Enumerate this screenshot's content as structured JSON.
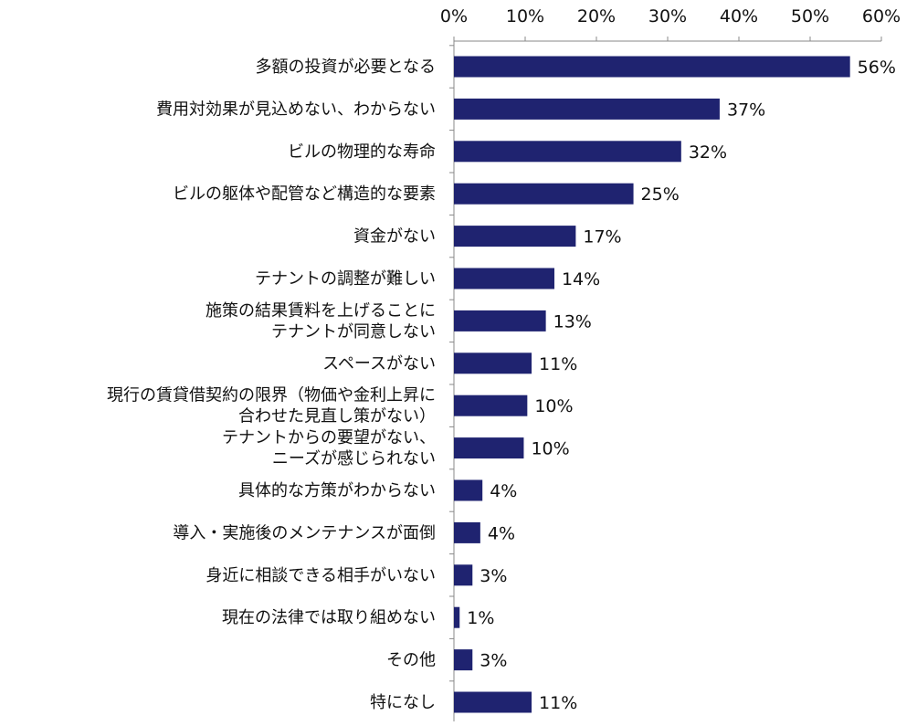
{
  "chart_data": {
    "type": "bar",
    "orientation": "horizontal",
    "title": "",
    "xlabel": "",
    "ylabel": "",
    "xlim": [
      0,
      60
    ],
    "x_ticks": [
      0,
      10,
      20,
      30,
      40,
      50,
      60
    ],
    "x_tick_labels": [
      "0%",
      "10%",
      "20%",
      "30%",
      "40%",
      "50%",
      "60%"
    ],
    "x_axis_position": "top",
    "grid": false,
    "legend": "none",
    "bar_color": "#1f2370",
    "categories": [
      [
        "多額の投資が必要となる"
      ],
      [
        "費用対効果が見込めない、わからない"
      ],
      [
        "ビルの物理的な寿命"
      ],
      [
        "ビルの躯体や配管など構造的な要素"
      ],
      [
        "資金がない"
      ],
      [
        "テナントの調整が難しい"
      ],
      [
        "施策の結果賃料を上げることに",
        "テナントが同意しない"
      ],
      [
        "スペースがない"
      ],
      [
        "現行の賃貸借契約の限界（物価や金利上昇に",
        "合わせた見直し策がない）"
      ],
      [
        "テナントからの要望がない、",
        "ニーズが感じられない"
      ],
      [
        "具体的な方策がわからない"
      ],
      [
        "導入・実施後のメンテナンスが面倒"
      ],
      [
        "身近に相談できる相手がいない"
      ],
      [
        "現在の法律では取り組めない"
      ],
      [
        "その他"
      ],
      [
        "特になし"
      ]
    ],
    "values": [
      55.6,
      37.3,
      31.9,
      25.2,
      17.1,
      14.1,
      12.9,
      10.9,
      10.3,
      9.8,
      4.0,
      3.7,
      2.6,
      0.8,
      2.6,
      10.9
    ],
    "value_labels": [
      "56%",
      "37%",
      "32%",
      "25%",
      "17%",
      "14%",
      "13%",
      "11%",
      "10%",
      "10%",
      "4%",
      "4%",
      "3%",
      "1%",
      "3%",
      "11%"
    ]
  }
}
